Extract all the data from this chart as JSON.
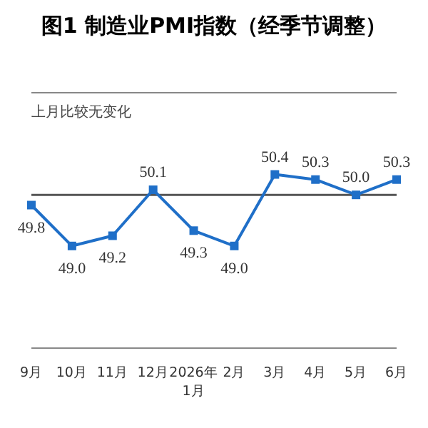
{
  "chart_data": {
    "type": "line",
    "title": "图1  制造业PMI指数（经季节调整）",
    "categories": [
      "9月",
      "10月",
      "11月",
      "12月",
      "2026年\n1月",
      "2月",
      "3月",
      "4月",
      "5月",
      "6月"
    ],
    "series": [
      {
        "color": "#1f6fc8",
        "values": [
          49.8,
          49.0,
          49.2,
          50.1,
          49.3,
          49.0,
          50.4,
          50.3,
          50.0,
          50.3
        ],
        "value_labels": [
          "49.8",
          "49.0",
          "49.2",
          "50.1",
          "49.3",
          "49.0",
          "50.4",
          "50.3",
          "50.0",
          "50.3"
        ]
      }
    ],
    "ylim": [
      47,
      52
    ],
    "tick_labels": "x",
    "marker": "square",
    "grid": false,
    "ref_lines": [
      {
        "axis": "y",
        "value": 50,
        "label": "上月比较无变化",
        "color": "#555555"
      }
    ]
  }
}
